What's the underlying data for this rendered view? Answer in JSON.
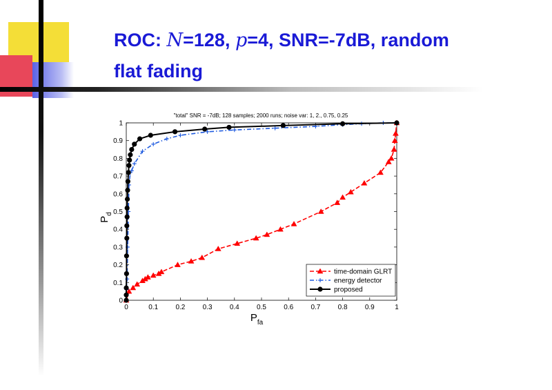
{
  "slide": {
    "title_parts": {
      "p1": "ROC: ",
      "p2": "N",
      "p3": "=128, ",
      "p4": "p",
      "p5": "=4, SNR=-7dB, random",
      "line2": "flat fading"
    },
    "colors": {
      "title": "#1a1ad6",
      "deco_yellow": "#f4de37",
      "deco_red": "#e8475a",
      "deco_blue": "#5b63e6"
    }
  },
  "chart_data": {
    "type": "line",
    "title": "\"total\" SNR = -7dB; 128 samples; 2000 runs; noise var: 1, 2., 0.75, 0.25",
    "xlabel_main": "P",
    "xlabel_sub": "fa",
    "ylabel_main": "P",
    "ylabel_sub": "d",
    "xlim": [
      0,
      1
    ],
    "ylim": [
      0,
      1
    ],
    "xticks": [
      "0",
      "0.1",
      "0.2",
      "0.3",
      "0.4",
      "0.5",
      "0.6",
      "0.7",
      "0.8",
      "0.9",
      "1"
    ],
    "yticks": [
      "0",
      "0.1",
      "0.2",
      "0.3",
      "0.4",
      "0.5",
      "0.6",
      "0.7",
      "0.8",
      "0.9",
      "1"
    ],
    "grid": false,
    "legend_position": "bottom-right",
    "series": [
      {
        "name": "time-domain GLRT",
        "color": "#ff0000",
        "line_style": "dashed",
        "marker": "triangle",
        "x": [
          0.0,
          0.01,
          0.025,
          0.04,
          0.06,
          0.07,
          0.08,
          0.1,
          0.12,
          0.13,
          0.19,
          0.24,
          0.28,
          0.34,
          0.41,
          0.48,
          0.52,
          0.57,
          0.62,
          0.72,
          0.78,
          0.8,
          0.83,
          0.88,
          0.94,
          0.97,
          0.98,
          0.99,
          0.993,
          0.996,
          1.0
        ],
        "y": [
          0.0,
          0.05,
          0.07,
          0.09,
          0.11,
          0.12,
          0.13,
          0.14,
          0.15,
          0.16,
          0.2,
          0.22,
          0.24,
          0.29,
          0.32,
          0.35,
          0.37,
          0.4,
          0.43,
          0.5,
          0.55,
          0.58,
          0.61,
          0.66,
          0.72,
          0.78,
          0.8,
          0.85,
          0.9,
          0.94,
          1.0
        ]
      },
      {
        "name": "energy detector",
        "color": "#1e5adf",
        "line_style": "dashdot",
        "marker": "plus",
        "x": [
          0.0,
          0.0,
          0.001,
          0.003,
          0.005,
          0.008,
          0.01,
          0.015,
          0.02,
          0.03,
          0.06,
          0.1,
          0.15,
          0.2,
          0.3,
          0.4,
          0.55,
          0.7,
          0.8,
          0.87,
          0.95,
          1.0
        ],
        "y": [
          0.0,
          0.03,
          0.06,
          0.12,
          0.3,
          0.5,
          0.65,
          0.72,
          0.73,
          0.77,
          0.84,
          0.88,
          0.91,
          0.93,
          0.95,
          0.96,
          0.97,
          0.98,
          0.99,
          0.995,
          1.0,
          1.0
        ]
      },
      {
        "name": "proposed",
        "color": "#000000",
        "line_style": "solid",
        "marker": "circle",
        "x": [
          0.0,
          0.0,
          0.0,
          0.001,
          0.001,
          0.002,
          0.002,
          0.003,
          0.003,
          0.004,
          0.005,
          0.006,
          0.008,
          0.01,
          0.012,
          0.015,
          0.02,
          0.03,
          0.05,
          0.09,
          0.18,
          0.29,
          0.38,
          0.58,
          0.8,
          1.0
        ],
        "y": [
          0.0,
          0.03,
          0.07,
          0.15,
          0.25,
          0.35,
          0.42,
          0.47,
          0.52,
          0.57,
          0.62,
          0.67,
          0.72,
          0.76,
          0.79,
          0.82,
          0.85,
          0.88,
          0.91,
          0.93,
          0.95,
          0.965,
          0.975,
          0.985,
          0.995,
          1.0
        ]
      }
    ]
  }
}
